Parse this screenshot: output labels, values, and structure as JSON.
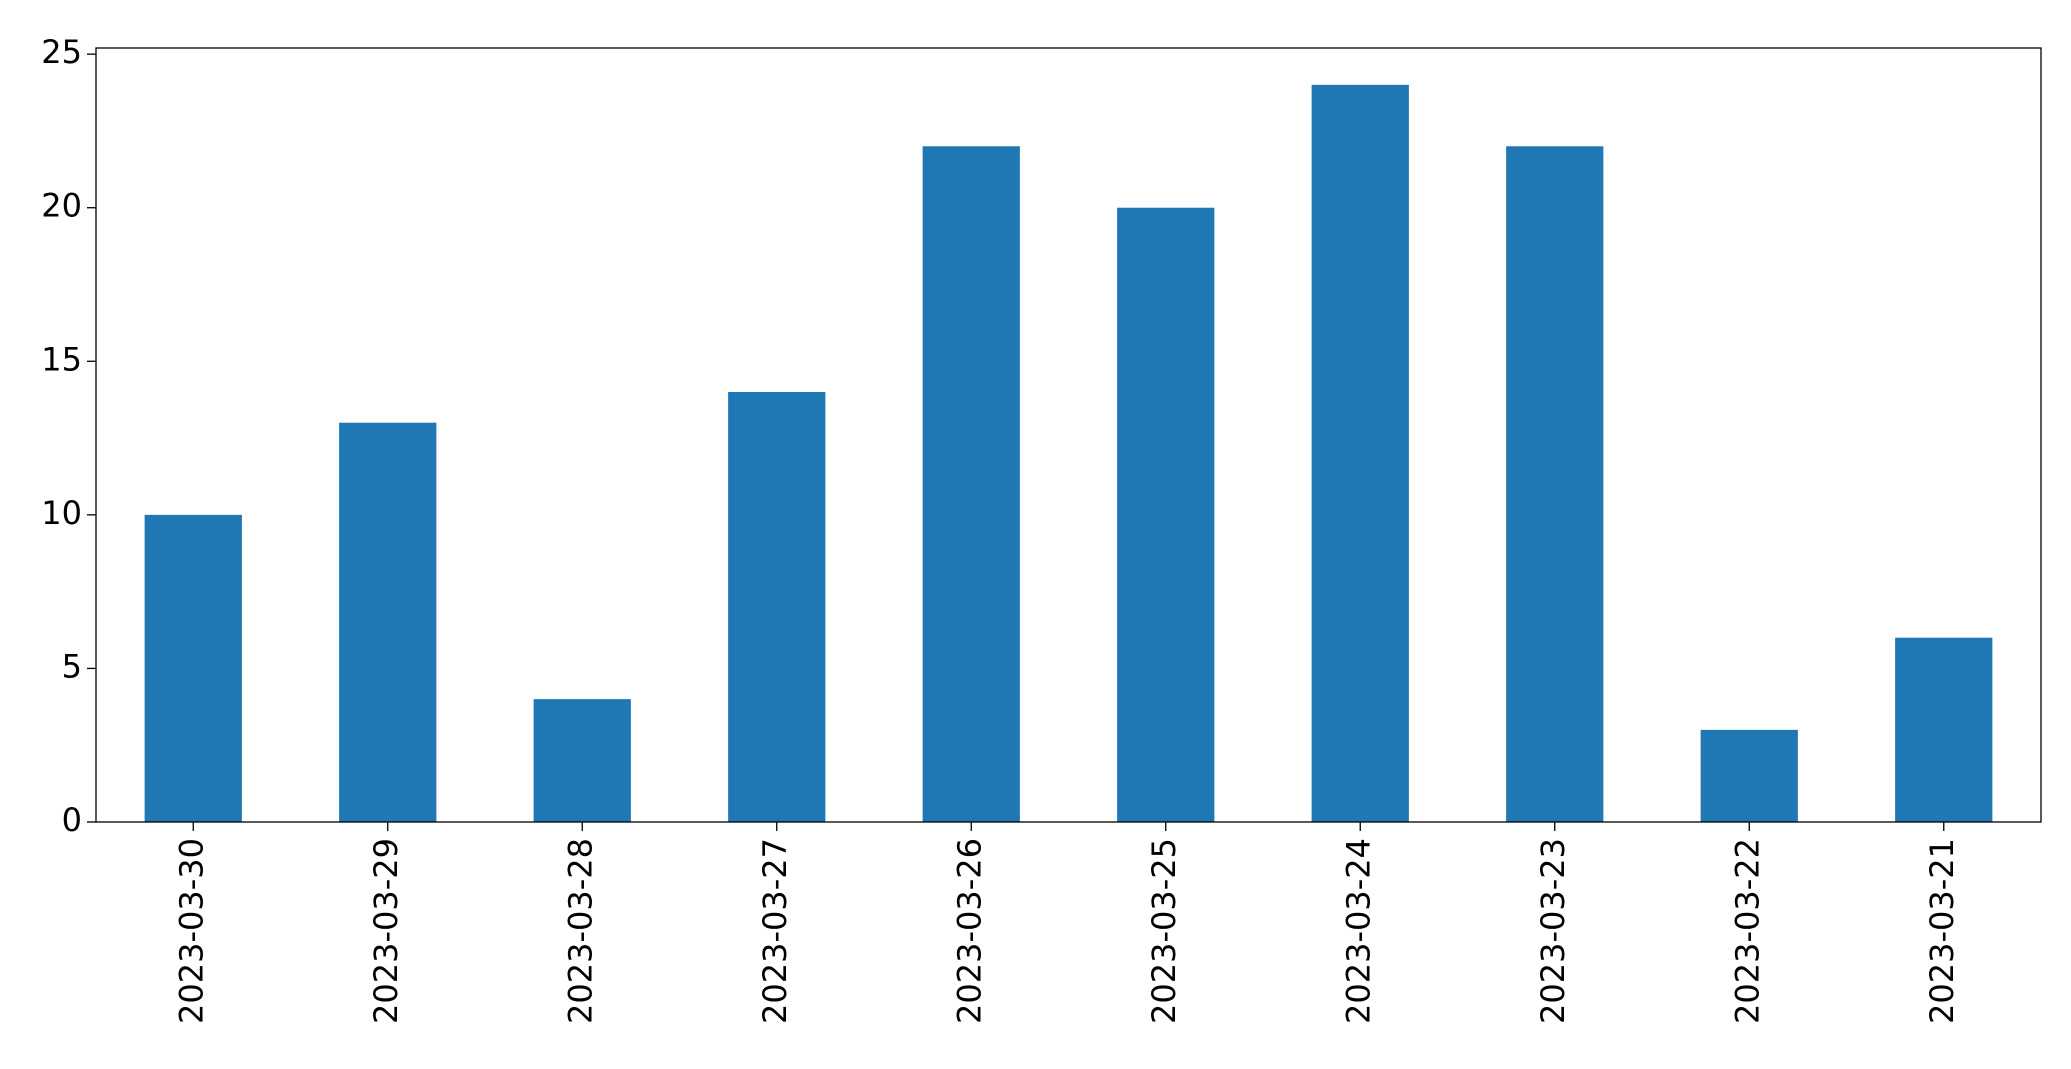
{
  "chart_data": {
    "type": "bar",
    "categories": [
      "2023-03-30",
      "2023-03-29",
      "2023-03-28",
      "2023-03-27",
      "2023-03-26",
      "2023-03-25",
      "2023-03-24",
      "2023-03-23",
      "2023-03-22",
      "2023-03-21"
    ],
    "values": [
      10,
      13,
      4,
      14,
      22,
      20,
      24,
      22,
      3,
      6
    ],
    "color": "#1f77b4",
    "ylim": [
      0,
      25.2
    ],
    "yticks": [
      0,
      5,
      10,
      15,
      20,
      25
    ],
    "grid": false
  }
}
